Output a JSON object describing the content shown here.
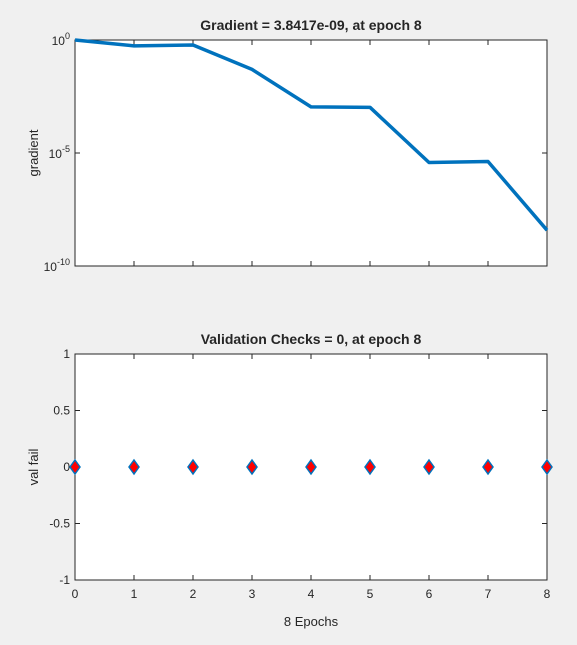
{
  "chart_data": [
    {
      "type": "line",
      "title": "Gradient = 3.8417e-09, at epoch 8",
      "xlabel": "",
      "ylabel": "gradient",
      "yscale": "log",
      "xlim": [
        0,
        8
      ],
      "ylim": [
        1e-10,
        1
      ],
      "grid": false,
      "x": [
        0,
        1,
        2,
        3,
        4,
        5,
        6,
        7,
        8
      ],
      "y": [
        1.0,
        0.55,
        0.6,
        0.05,
        0.0011,
        0.00105,
        3.8e-06,
        4.2e-06,
        3.8417e-09
      ],
      "ytick_labels": [
        {
          "base": "10",
          "exp": "0",
          "value": 1
        },
        {
          "base": "10",
          "exp": "-5",
          "value": 1e-05
        },
        {
          "base": "10",
          "exp": "-10",
          "value": 1e-10
        }
      ],
      "line_color": "#0072BD"
    },
    {
      "type": "scatter",
      "title": "Validation Checks = 0, at epoch 8",
      "xlabel": "8 Epochs",
      "ylabel": "val fail",
      "xlim": [
        0,
        8
      ],
      "ylim": [
        -1,
        1
      ],
      "grid": false,
      "x": [
        0,
        1,
        2,
        3,
        4,
        5,
        6,
        7,
        8
      ],
      "y": [
        0,
        0,
        0,
        0,
        0,
        0,
        0,
        0,
        0
      ],
      "xtick_labels": [
        "0",
        "1",
        "2",
        "3",
        "4",
        "5",
        "6",
        "7",
        "8"
      ],
      "ytick_labels": [
        "1",
        "0.5",
        "0",
        "-0.5",
        "-1"
      ],
      "ytick_values": [
        1,
        0.5,
        0,
        -0.5,
        -1
      ],
      "marker_fill": "#ff0000",
      "marker_edge": "#0072BD"
    }
  ]
}
